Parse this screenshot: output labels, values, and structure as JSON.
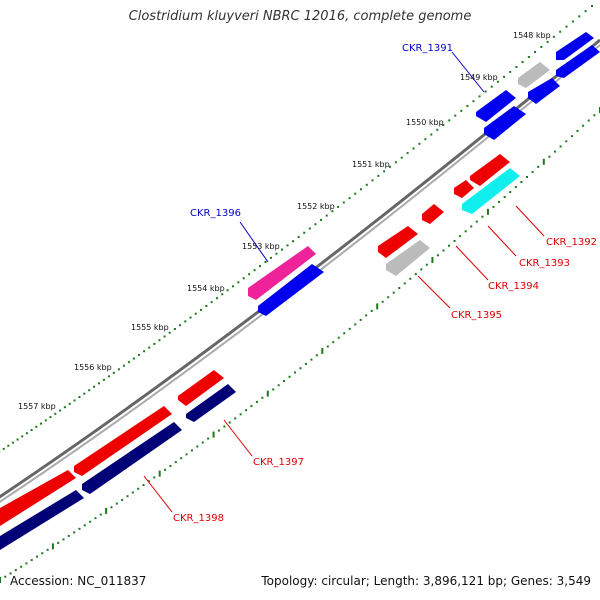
{
  "title": "Clostridium kluyveri NBRC 12016, complete genome",
  "footer": {
    "accession": "Accession: NC_011837",
    "summary": "Topology: circular; Length: 3,896,121 bp; Genes: 3,549"
  },
  "colors": {
    "backbone": "#888888",
    "tick_green": "#1a7a1a",
    "label_blue": "#0000cc",
    "label_red": "#dd0000",
    "callout_blue": "#0000cc",
    "callout_red": "#dd0000"
  },
  "kbp_marks": [
    {
      "label": "1548 kbp"
    },
    {
      "label": "1549 kbp"
    },
    {
      "label": "1550 kbp"
    },
    {
      "label": "1551 kbp"
    },
    {
      "label": "1552 kbp"
    },
    {
      "label": "1553 kbp"
    },
    {
      "label": "1554 kbp"
    },
    {
      "label": "1555 kbp"
    },
    {
      "label": "1556 kbp"
    },
    {
      "label": "1557 kbp"
    }
  ],
  "genes": [
    {
      "label": "CKR_1391",
      "label_color": "blue"
    },
    {
      "label": "CKR_1392",
      "label_color": "red"
    },
    {
      "label": "CKR_1393",
      "label_color": "red"
    },
    {
      "label": "CKR_1394",
      "label_color": "red"
    },
    {
      "label": "CKR_1395",
      "label_color": "red"
    },
    {
      "label": "CKR_1396",
      "label_color": "blue"
    },
    {
      "label": "CKR_1397",
      "label_color": "red"
    },
    {
      "label": "CKR_1398",
      "label_color": "red"
    }
  ],
  "feature_colors": {
    "blue": "#0000ee",
    "gray": "#bbbbbb",
    "red": "#ee0000",
    "cyan": "#11eeee",
    "magenta": "#ee2299",
    "navy": "#000077"
  }
}
